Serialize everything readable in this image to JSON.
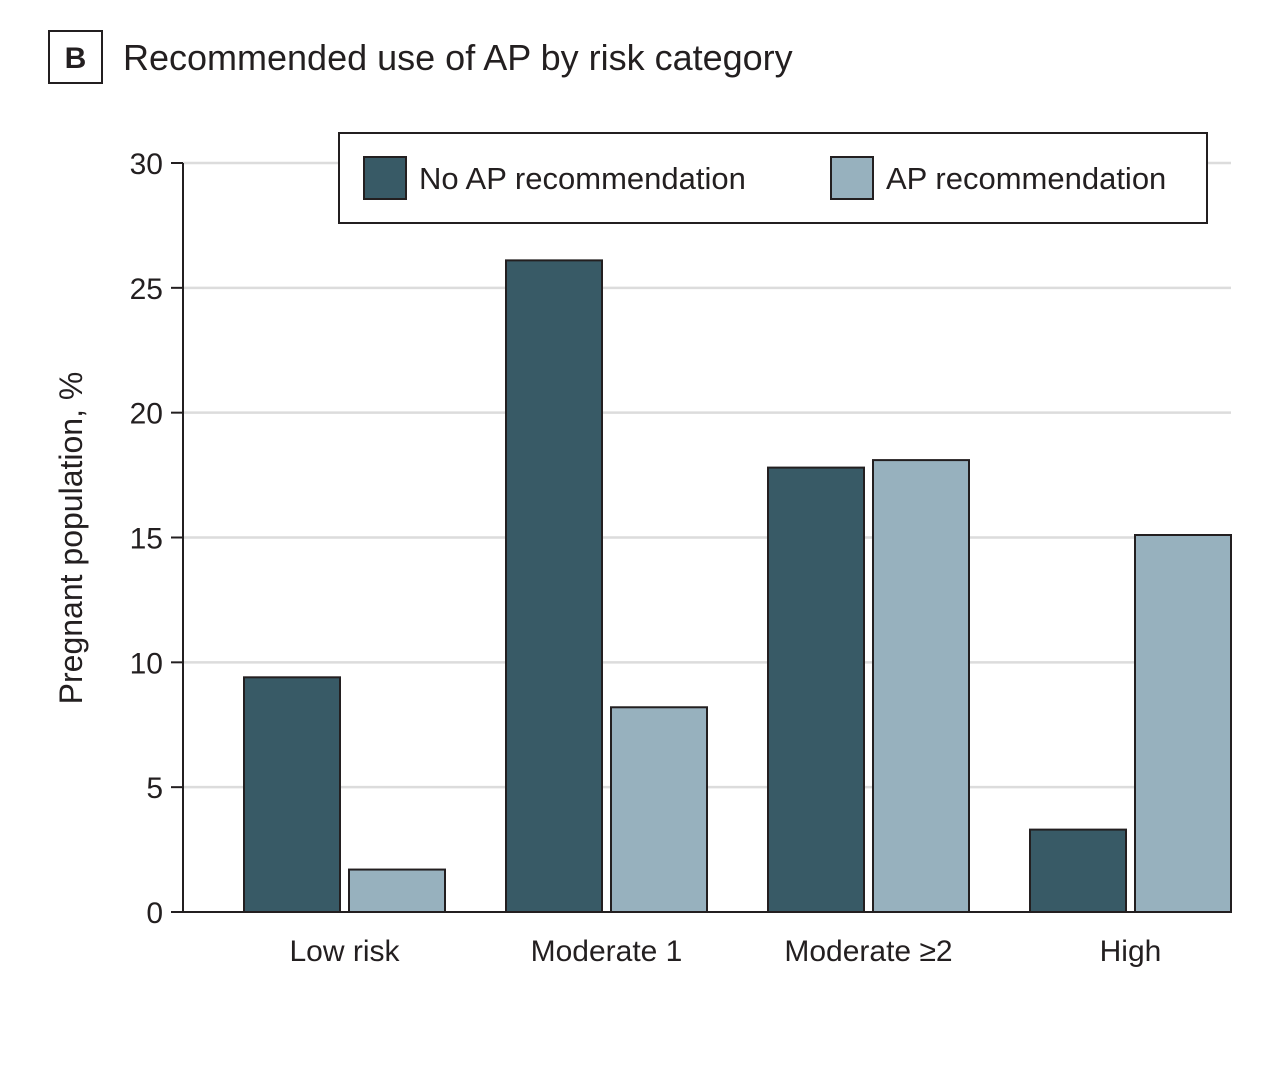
{
  "panel": {
    "letter": "B",
    "title": "Recommended use of AP by risk category"
  },
  "chart_data": {
    "type": "bar",
    "title": "Recommended use of AP by risk category",
    "xlabel": "",
    "ylabel": "Pregnant population, %",
    "ylim": [
      0,
      30
    ],
    "yticks": [
      0,
      5,
      10,
      15,
      20,
      25,
      30
    ],
    "grid": true,
    "legend_position": "top",
    "categories": [
      "Low risk",
      "Moderate 1",
      "Moderate ≥2",
      "High"
    ],
    "series": [
      {
        "name": "No AP recommendation",
        "color": "#385a66",
        "values": [
          9.4,
          26.1,
          17.8,
          3.3
        ]
      },
      {
        "name": "AP recommendation",
        "color": "#97b1be",
        "values": [
          1.7,
          8.2,
          18.1,
          15.1
        ]
      }
    ]
  }
}
